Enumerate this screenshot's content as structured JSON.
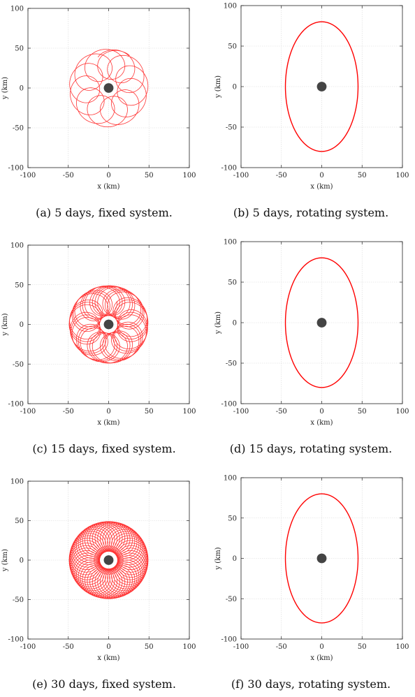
{
  "chart_data": [
    {
      "id": "a",
      "type": "line",
      "caption_tag": "(a)",
      "caption": "5 days, fixed system.",
      "xlabel": "x (km)",
      "ylabel": "y (km)",
      "xlim": [
        -100,
        100
      ],
      "ylim": [
        -100,
        100
      ],
      "xticks": [
        -100,
        -50,
        0,
        50,
        100
      ],
      "yticks": [
        -100,
        -50,
        0,
        50,
        100
      ],
      "grid": true,
      "series": [
        {
          "kind": "epicycle",
          "color": "#ff3333",
          "semi_axes": [
            45,
            80
          ],
          "mean_radius": 60,
          "loops": 10.8,
          "start_angle_deg": 65,
          "sweep_deg": 375,
          "points": 900
        }
      ],
      "central_body": {
        "x": 0,
        "y": 0,
        "radius_km": 6,
        "color": "#444444"
      }
    },
    {
      "id": "b",
      "type": "line",
      "caption_tag": "(b)",
      "caption": "5 days, rotating system.",
      "xlabel": "x (km)",
      "ylabel": "y (km)",
      "xlim": [
        -100,
        100
      ],
      "ylim": [
        -100,
        100
      ],
      "xticks": [
        -100,
        -50,
        0,
        50,
        100
      ],
      "yticks": [
        -100,
        -50,
        0,
        50,
        100
      ],
      "grid": true,
      "series": [
        {
          "kind": "ellipse",
          "color": "#ff0000",
          "semi_axes": [
            45,
            80
          ],
          "points": 400
        }
      ],
      "central_body": {
        "x": 0,
        "y": 0,
        "radius_km": 6,
        "color": "#444444"
      }
    },
    {
      "id": "c",
      "type": "line",
      "caption_tag": "(c)",
      "caption": "15 days, fixed system.",
      "xlabel": "x (km)",
      "ylabel": "y (km)",
      "xlim": [
        -100,
        100
      ],
      "ylim": [
        -100,
        100
      ],
      "xticks": [
        -100,
        -50,
        0,
        50,
        100
      ],
      "yticks": [
        -100,
        -50,
        0,
        50,
        100
      ],
      "grid": true,
      "series": [
        {
          "kind": "epicycle",
          "color": "#ff3333",
          "semi_axes": [
            45,
            80
          ],
          "mean_radius": 60,
          "loops": 10.8,
          "start_angle_deg": 65,
          "sweep_deg": 1125,
          "points": 2600
        }
      ],
      "central_body": {
        "x": 0,
        "y": 0,
        "radius_km": 6,
        "color": "#444444"
      }
    },
    {
      "id": "d",
      "type": "line",
      "caption_tag": "(d)",
      "caption": "15 days, rotating system.",
      "xlabel": "x (km)",
      "ylabel": "y (km)",
      "xlim": [
        -100,
        100
      ],
      "ylim": [
        -100,
        100
      ],
      "xticks": [
        -100,
        -50,
        0,
        50,
        100
      ],
      "yticks": [
        -100,
        -50,
        0,
        50,
        100
      ],
      "grid": true,
      "series": [
        {
          "kind": "ellipse",
          "color": "#ff0000",
          "semi_axes": [
            45,
            80
          ],
          "points": 400
        }
      ],
      "central_body": {
        "x": 0,
        "y": 0,
        "radius_km": 6,
        "color": "#444444"
      }
    },
    {
      "id": "e",
      "type": "line",
      "caption_tag": "(e)",
      "caption": "30 days, fixed system.",
      "xlabel": "x (km)",
      "ylabel": "y (km)",
      "xlim": [
        -100,
        100
      ],
      "ylim": [
        -100,
        100
      ],
      "xticks": [
        -100,
        -50,
        0,
        50,
        100
      ],
      "yticks": [
        -100,
        -50,
        0,
        50,
        100
      ],
      "grid": true,
      "series": [
        {
          "kind": "epicycle",
          "color": "#ff3333",
          "semi_axes": [
            45,
            80
          ],
          "mean_radius": 60,
          "loops": 10.8,
          "start_angle_deg": 65,
          "sweep_deg": 2250,
          "points": 5200
        }
      ],
      "central_body": {
        "x": 0,
        "y": 0,
        "radius_km": 6,
        "color": "#444444"
      }
    },
    {
      "id": "f",
      "type": "line",
      "caption_tag": "(f)",
      "caption": "30 days, rotating system.",
      "xlabel": "x (km)",
      "ylabel": "y (km)",
      "xlim": [
        -100,
        100
      ],
      "ylim": [
        -100,
        100
      ],
      "xticks": [
        -100,
        -50,
        0,
        50,
        100
      ],
      "yticks": [
        -100,
        -50,
        0,
        50,
        100
      ],
      "grid": true,
      "series": [
        {
          "kind": "ellipse",
          "color": "#ff0000",
          "semi_axes": [
            45,
            80
          ],
          "points": 400
        }
      ],
      "central_body": {
        "x": 0,
        "y": 0,
        "radius_km": 6,
        "color": "#444444"
      }
    }
  ]
}
